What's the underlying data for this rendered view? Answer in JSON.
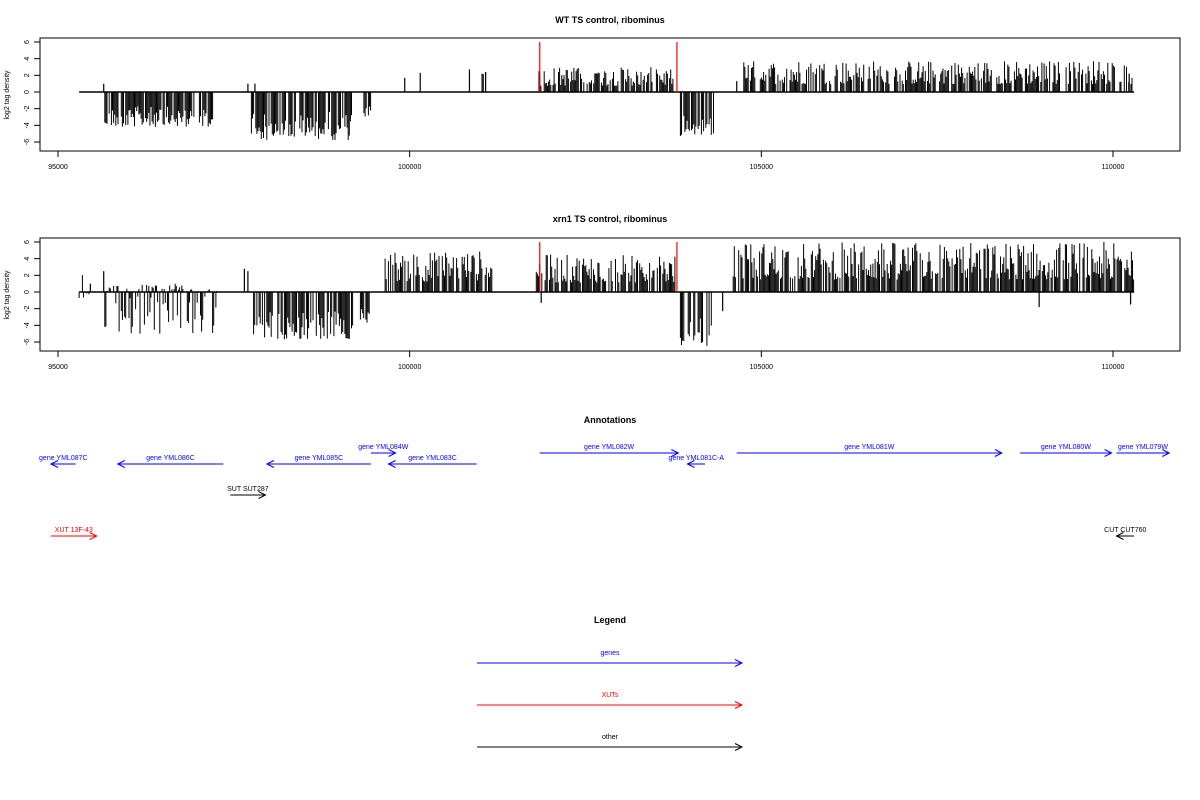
{
  "chart_data": [
    {
      "type": "bar",
      "title": "WT TS control, ribominus",
      "ylabel": "log2 tag density",
      "xlabel": "",
      "xlim": [
        95000,
        110800
      ],
      "ylim": [
        -6,
        6
      ],
      "yticks": [
        "6",
        "4",
        "2",
        "0",
        "-2",
        "-4",
        "-6"
      ],
      "xticks": [
        "95000",
        "100000",
        "105000",
        "110000"
      ],
      "grid": false,
      "baseline_range": [
        95300,
        110300
      ],
      "series": [
        {
          "color": "#000000",
          "regions": [
            {
              "start": 95300,
              "end": 95340,
              "min": 0,
              "max": 0
            },
            {
              "start": 95650,
              "end": 97200,
              "min": -4.2,
              "max": 0
            },
            {
              "start": 97750,
              "end": 99200,
              "min": -5.8,
              "max": 0
            },
            {
              "start": 99350,
              "end": 99450,
              "min": -3.5,
              "max": 0
            },
            {
              "start": 101000,
              "end": 101100,
              "min": 0,
              "max": 2.5
            },
            {
              "start": 101850,
              "end": 103750,
              "min": 0,
              "max": 3
            },
            {
              "start": 103850,
              "end": 104350,
              "min": -5.3,
              "max": 0
            },
            {
              "start": 104750,
              "end": 110300,
              "min": 0,
              "max": 3.8
            }
          ],
          "spikes": [
            {
              "x": 95650,
              "y": 1
            },
            {
              "x": 97700,
              "y": 1
            },
            {
              "x": 97800,
              "y": 1
            },
            {
              "x": 99930,
              "y": 1.7
            },
            {
              "x": 100150,
              "y": 2.3
            },
            {
              "x": 100850,
              "y": 2.7
            },
            {
              "x": 101030,
              "y": 2.2
            },
            {
              "x": 101080,
              "y": 2.4
            },
            {
              "x": 101840,
              "y": 2.5
            },
            {
              "x": 104650,
              "y": 1.3
            },
            {
              "x": 110230,
              "y": 2.2
            }
          ]
        }
      ],
      "markers": [
        {
          "x": 101850,
          "color": "#ff0000"
        },
        {
          "x": 103800,
          "color": "#ff0000"
        }
      ]
    },
    {
      "type": "bar",
      "title": "xrn1 TS control, ribominus",
      "ylabel": "log2 tag density",
      "xlabel": "",
      "xlim": [
        95000,
        110800
      ],
      "ylim": [
        -6,
        6
      ],
      "yticks": [
        "6",
        "4",
        "2",
        "0",
        "-2",
        "-4",
        "-6"
      ],
      "xticks": [
        "95000",
        "100000",
        "105000",
        "110000"
      ],
      "grid": false,
      "baseline_range": [
        95300,
        110300
      ],
      "series": [
        {
          "color": "#000000",
          "regions": [
            {
              "start": 95300,
              "end": 95450,
              "min": -1.5,
              "max": 3
            },
            {
              "start": 95650,
              "end": 97300,
              "min": -5,
              "max": 1
            },
            {
              "start": 97750,
              "end": 99200,
              "min": -5.7,
              "max": 0
            },
            {
              "start": 99300,
              "end": 99450,
              "min": -3.8,
              "max": 0
            },
            {
              "start": 99650,
              "end": 101200,
              "min": 0,
              "max": 5
            },
            {
              "start": 101800,
              "end": 103800,
              "min": 0,
              "max": 4.5
            },
            {
              "start": 103850,
              "end": 104300,
              "min": -6.5,
              "max": 0
            },
            {
              "start": 104600,
              "end": 110300,
              "min": 0,
              "max": 6
            }
          ],
          "spikes": [
            {
              "x": 95460,
              "y": 1
            },
            {
              "x": 95650,
              "y": 2.5
            },
            {
              "x": 97650,
              "y": 2.8
            },
            {
              "x": 97700,
              "y": 2.5
            },
            {
              "x": 101870,
              "y": -1.3
            },
            {
              "x": 104450,
              "y": -2.3
            },
            {
              "x": 108950,
              "y": -1.8
            },
            {
              "x": 110250,
              "y": -1.5
            }
          ]
        }
      ],
      "markers": [
        {
          "x": 101850,
          "color": "#ff0000"
        },
        {
          "x": 103800,
          "color": "#ff0000"
        }
      ]
    }
  ],
  "annotations": {
    "title": "Annotations",
    "features": [
      {
        "label": "gene YML087C",
        "start": 94900,
        "end": 95250,
        "strand": "-",
        "color": "#0000ff",
        "row": 1
      },
      {
        "label": "gene YML086C",
        "start": 95850,
        "end": 97350,
        "strand": "-",
        "color": "#0000ff",
        "row": 1
      },
      {
        "label": "gene YML085C",
        "start": 97970,
        "end": 99450,
        "strand": "-",
        "color": "#0000ff",
        "row": 1
      },
      {
        "label": "gene YML084W",
        "start": 99450,
        "end": 99800,
        "strand": "+",
        "color": "#0000ff",
        "row": 0
      },
      {
        "label": "gene YML083C",
        "start": 99700,
        "end": 100950,
        "strand": "-",
        "color": "#0000ff",
        "row": 1
      },
      {
        "label": "gene YML082W",
        "start": 101850,
        "end": 103820,
        "strand": "+",
        "color": "#0000ff",
        "row": 0
      },
      {
        "label": "gene YML081C-A",
        "start": 103950,
        "end": 104200,
        "strand": "-",
        "color": "#0000ff",
        "row": 1
      },
      {
        "label": "gene YML081W",
        "start": 104650,
        "end": 108420,
        "strand": "+",
        "color": "#0000ff",
        "row": 0
      },
      {
        "label": "gene YML080W",
        "start": 108680,
        "end": 109980,
        "strand": "+",
        "color": "#0000ff",
        "row": 0
      },
      {
        "label": "gene YML079W",
        "start": 110050,
        "end": 110800,
        "strand": "+",
        "color": "#0000ff",
        "row": 0
      },
      {
        "label": "SUT SUT287",
        "start": 97450,
        "end": 97950,
        "strand": "+",
        "color": "#000000",
        "row": 2
      },
      {
        "label": "XUT 13F-43",
        "start": 94900,
        "end": 95550,
        "strand": "+",
        "color": "#ff0000",
        "row": 3
      },
      {
        "label": "CUT CUT760",
        "start": 110050,
        "end": 110300,
        "strand": "-",
        "color": "#000000",
        "row": 3
      }
    ]
  },
  "legend": {
    "title": "Legend",
    "items": [
      {
        "label": "genes",
        "color": "#0000ff"
      },
      {
        "label": "XUTs",
        "color": "#ff0000"
      },
      {
        "label": "other",
        "color": "#000000"
      }
    ]
  }
}
